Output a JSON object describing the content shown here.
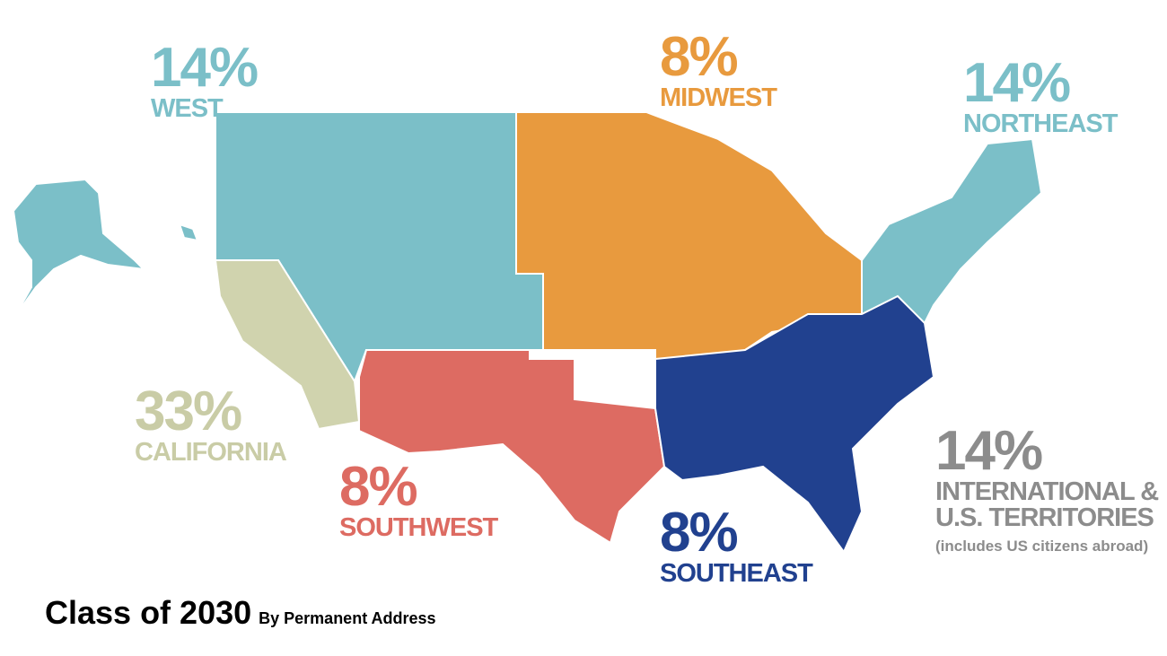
{
  "regions": [
    {
      "percent": "14%",
      "name": "WEST"
    },
    {
      "percent": "8%",
      "name": "MIDWEST"
    },
    {
      "percent": "14%",
      "name": "NORTHEAST"
    },
    {
      "percent": "33%",
      "name": "CALIFORNIA"
    },
    {
      "percent": "8%",
      "name": "SOUTHWEST"
    },
    {
      "percent": "8%",
      "name": "SOUTHEAST"
    },
    {
      "percent": "14%",
      "name": "INTERNATIONAL & U.S. TERRITORIES",
      "note": "(includes US citizens abroad)"
    }
  ],
  "title": "Class of 2030",
  "subtitle": "By Permanent Address"
}
